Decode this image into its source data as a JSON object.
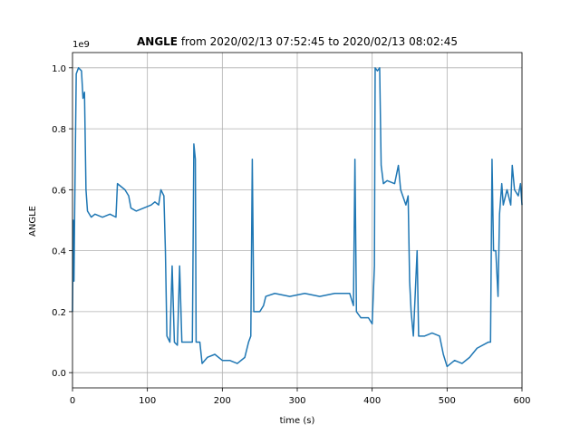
{
  "chart_data": {
    "type": "line",
    "title_bold": "ANGLE",
    "title": " from 2020/02/13 07:52:45 to 2020/02/13 08:02:45",
    "x_label": "time (s)",
    "y_label": "ANGLE",
    "y_offset_label": "1e9",
    "x": [
      0,
      1,
      2,
      3,
      5,
      8,
      12,
      14,
      16,
      18,
      20,
      25,
      30,
      40,
      50,
      58,
      60,
      65,
      70,
      75,
      78,
      85,
      95,
      105,
      110,
      115,
      118,
      122,
      124,
      126,
      130,
      133,
      136,
      140,
      143,
      146,
      155,
      160,
      162,
      164,
      165,
      170,
      173,
      180,
      190,
      200,
      210,
      220,
      230,
      235,
      238,
      240,
      242,
      250,
      255,
      258,
      270,
      290,
      310,
      330,
      350,
      370,
      375,
      377,
      379,
      385,
      395,
      400,
      403,
      404,
      407,
      410,
      412,
      415,
      420,
      430,
      435,
      438,
      445,
      448,
      450,
      452,
      455,
      460,
      462,
      470,
      480,
      490,
      495,
      500,
      510,
      520,
      530,
      540,
      555,
      558,
      560,
      562,
      565,
      568,
      570,
      573,
      575,
      580,
      585,
      587,
      590,
      595,
      598,
      600
    ],
    "series": [
      {
        "name": "ANGLE",
        "color": "#1f77b4",
        "values": [
          0.2,
          0.5,
          0.3,
          0.55,
          0.98,
          1.0,
          0.99,
          0.9,
          0.92,
          0.6,
          0.53,
          0.51,
          0.52,
          0.51,
          0.52,
          0.51,
          0.62,
          0.61,
          0.6,
          0.58,
          0.54,
          0.53,
          0.54,
          0.55,
          0.56,
          0.55,
          0.6,
          0.58,
          0.4,
          0.12,
          0.1,
          0.35,
          0.1,
          0.09,
          0.35,
          0.1,
          0.1,
          0.1,
          0.75,
          0.7,
          0.1,
          0.1,
          0.03,
          0.05,
          0.06,
          0.04,
          0.04,
          0.03,
          0.05,
          0.1,
          0.12,
          0.7,
          0.2,
          0.2,
          0.22,
          0.25,
          0.26,
          0.25,
          0.26,
          0.25,
          0.26,
          0.26,
          0.22,
          0.7,
          0.2,
          0.18,
          0.18,
          0.16,
          0.35,
          1.0,
          0.99,
          1.0,
          0.68,
          0.62,
          0.63,
          0.62,
          0.68,
          0.6,
          0.55,
          0.58,
          0.3,
          0.2,
          0.12,
          0.4,
          0.12,
          0.12,
          0.13,
          0.12,
          0.06,
          0.02,
          0.04,
          0.03,
          0.05,
          0.08,
          0.1,
          0.1,
          0.7,
          0.4,
          0.4,
          0.25,
          0.52,
          0.62,
          0.55,
          0.6,
          0.55,
          0.68,
          0.6,
          0.58,
          0.62,
          0.55
        ]
      }
    ],
    "xlim": [
      0,
      600
    ],
    "xticks": [
      0,
      100,
      200,
      300,
      400,
      500,
      600
    ],
    "ylim": [
      -0.05,
      1.05
    ],
    "yticks": [
      {
        "value": 0,
        "label": "0.0"
      },
      {
        "value": 0.2,
        "label": "0.2"
      },
      {
        "value": 0.4,
        "label": "0.4"
      },
      {
        "value": 0.6,
        "label": "0.6"
      },
      {
        "value": 0.8,
        "label": "0.8"
      },
      {
        "value": 1.0,
        "label": "1.0"
      }
    ],
    "grid": true
  }
}
